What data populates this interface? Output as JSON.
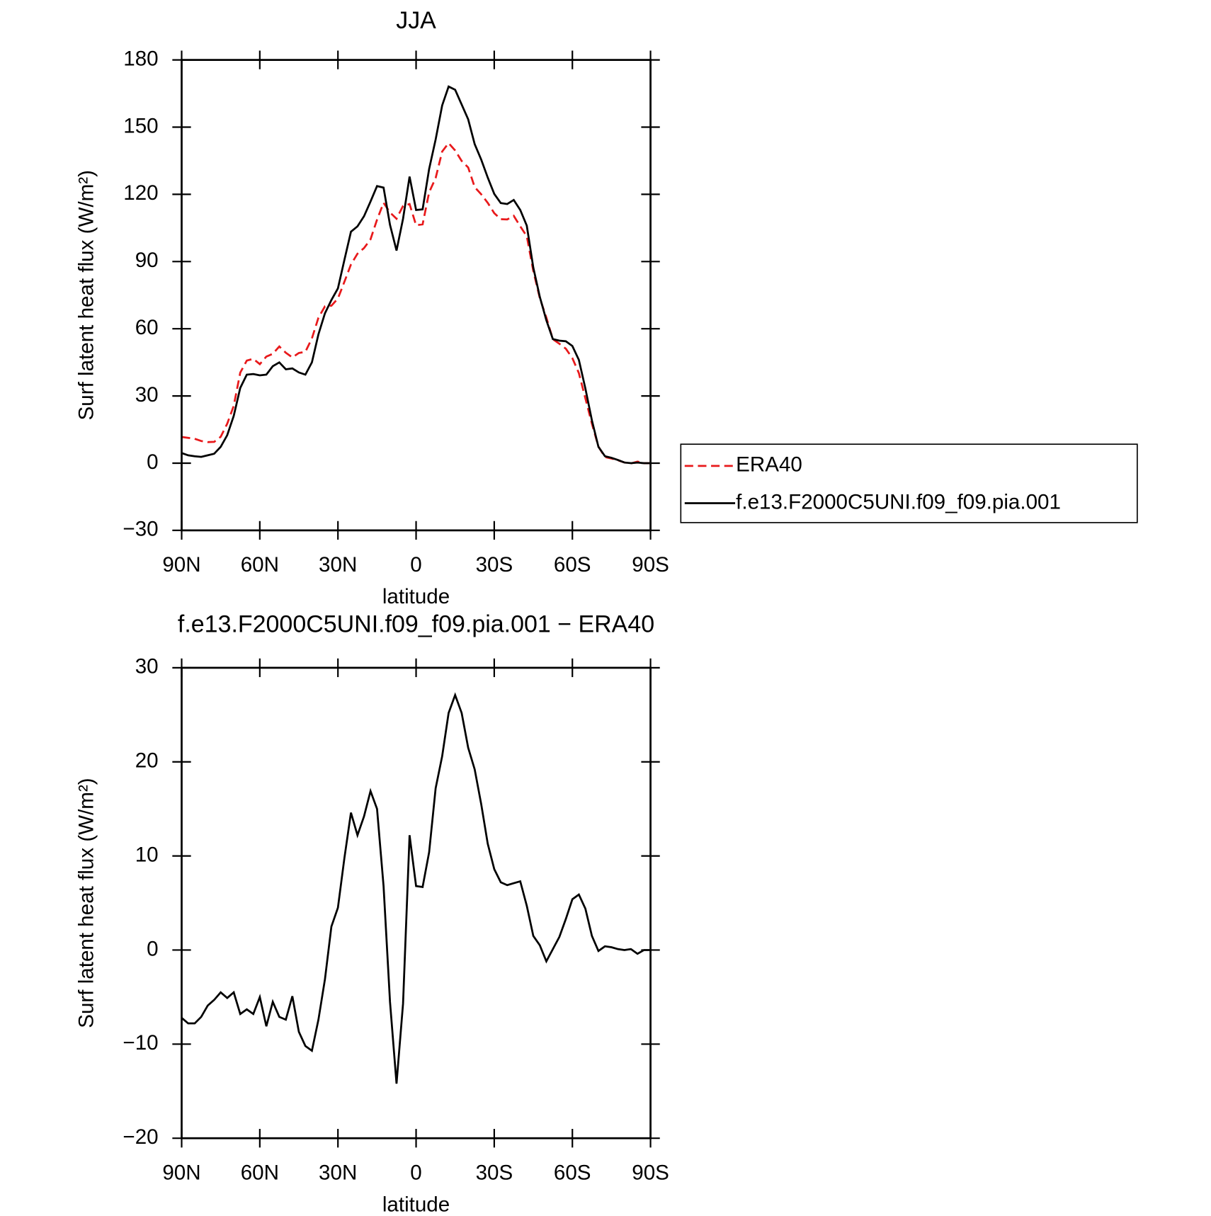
{
  "chart_data": [
    {
      "type": "line",
      "title": "JJA",
      "x_label": "latitude",
      "y_label": "Surf latent heat flux (W/m²)",
      "x": [
        90,
        87.5,
        85,
        82.5,
        80,
        77.5,
        75,
        72.5,
        70,
        67.5,
        65,
        62.5,
        60,
        57.5,
        55,
        52.5,
        50,
        47.5,
        45,
        42.5,
        40,
        37.5,
        35,
        32.5,
        30,
        27.5,
        25,
        22.5,
        20,
        17.5,
        15,
        12.5,
        10,
        7.5,
        5,
        2.5,
        0,
        -2.5,
        -5,
        -7.5,
        -10,
        -12.5,
        -15,
        -17.5,
        -20,
        -22.5,
        -25,
        -27.5,
        -30,
        -32.5,
        -35,
        -37.5,
        -40,
        -42.5,
        -45,
        -47.5,
        -50,
        -52.5,
        -55,
        -57.5,
        -60,
        -62.5,
        -65,
        -67.5,
        -70,
        -72.5,
        -75,
        -77.5,
        -80,
        -82.5,
        -85,
        -87.5,
        -90
      ],
      "xlim": [
        90,
        -90
      ],
      "xticks": [
        {
          "value": 90,
          "label": "90N"
        },
        {
          "value": 60,
          "label": "60N"
        },
        {
          "value": 30,
          "label": "30N"
        },
        0,
        {
          "value": -30,
          "label": "30S"
        },
        {
          "value": -60,
          "label": "60S"
        },
        {
          "value": -90,
          "label": "90S"
        }
      ],
      "ylim": [
        -30,
        180
      ],
      "yticks": [
        {
          "value": -30,
          "label": "−30"
        },
        0,
        30,
        60,
        90,
        120,
        150,
        180
      ],
      "legend": "right",
      "series": [
        {
          "name": "ERA40",
          "color": "#e8191b",
          "dashed": true,
          "values": [
            11.7,
            11.3,
            10.9,
            9.9,
            9.4,
            9.5,
            11.8,
            17.6,
            25.6,
            40.4,
            45.8,
            46.6,
            44.2,
            47.6,
            48.8,
            52.1,
            49.3,
            47.2,
            49.2,
            49.7,
            55.7,
            64.9,
            70.0,
            70.3,
            73.5,
            81.0,
            88.7,
            93.5,
            96.0,
            99.9,
            108.7,
            116.2,
            111.9,
            109.1,
            114.8,
            115.7,
            106.2,
            106.6,
            120.9,
            127.3,
            139.1,
            142.9,
            139.6,
            134.9,
            132.0,
            123.2,
            120.0,
            116.2,
            111.6,
            108.9,
            108.8,
            110.4,
            105.7,
            101.3,
            85.8,
            73.7,
            65.0,
            55.3,
            53.3,
            51.1,
            46.9,
            40.2,
            28.9,
            17.6,
            7.4,
            2.7,
            2.1,
            1.3,
            0.3,
            -0.1,
            0.7,
            0,
            0
          ]
        },
        {
          "name": "f.e13.F2000C5UNI.f09_f09.pia.001",
          "color": "#000000",
          "dashed": false,
          "values": [
            4.5,
            3.5,
            3.1,
            2.8,
            3.5,
            4.2,
            7.3,
            12.5,
            21.1,
            33.6,
            39.5,
            39.8,
            39.2,
            39.5,
            43.3,
            45.0,
            41.9,
            42.3,
            40.5,
            39.5,
            45.0,
            57.5,
            66.9,
            72.8,
            78.0,
            90.8,
            103.3,
            105.7,
            110.2,
            116.8,
            123.7,
            123.0,
            106.4,
            94.9,
            109.1,
            127.9,
            113.0,
            113.3,
            131.3,
            144.5,
            159.7,
            168.1,
            166.7,
            160.1,
            153.5,
            142.4,
            135.5,
            127.5,
            120.2,
            116.1,
            115.7,
            117.5,
            113.0,
            106.0,
            87.3,
            74.2,
            63.8,
            55.4,
            54.7,
            54.4,
            52.3,
            46.1,
            33.3,
            19.1,
            7.3,
            3.1,
            2.4,
            1.4,
            0.3,
            0,
            0.3,
            0,
            0
          ]
        }
      ]
    },
    {
      "type": "line",
      "title": "f.e13.F2000C5UNI.f09_f09.pia.001 − ERA40",
      "x_label": "latitude",
      "y_label": "Surf latent heat flux (W/m²)",
      "x": [
        90,
        87.5,
        85,
        82.5,
        80,
        77.5,
        75,
        72.5,
        70,
        67.5,
        65,
        62.5,
        60,
        57.5,
        55,
        52.5,
        50,
        47.5,
        45,
        42.5,
        40,
        37.5,
        35,
        32.5,
        30,
        27.5,
        25,
        22.5,
        20,
        17.5,
        15,
        12.5,
        10,
        7.5,
        5,
        2.5,
        0,
        -2.5,
        -5,
        -7.5,
        -10,
        -12.5,
        -15,
        -17.5,
        -20,
        -22.5,
        -25,
        -27.5,
        -30,
        -32.5,
        -35,
        -37.5,
        -40,
        -42.5,
        -45,
        -47.5,
        -50,
        -52.5,
        -55,
        -57.5,
        -60,
        -62.5,
        -65,
        -67.5,
        -70,
        -72.5,
        -75,
        -77.5,
        -80,
        -82.5,
        -85,
        -87.5,
        -90
      ],
      "xlim": [
        90,
        -90
      ],
      "xticks": [
        {
          "value": 90,
          "label": "90N"
        },
        {
          "value": 60,
          "label": "60N"
        },
        {
          "value": 30,
          "label": "30N"
        },
        0,
        {
          "value": -30,
          "label": "30S"
        },
        {
          "value": -60,
          "label": "60S"
        },
        {
          "value": -90,
          "label": "90S"
        }
      ],
      "ylim": [
        -20,
        30
      ],
      "yticks": [
        {
          "value": -20,
          "label": "−20"
        },
        {
          "value": -10,
          "label": "−10"
        },
        0,
        10,
        20,
        30
      ],
      "series": [
        {
          "color": "#000000",
          "dashed": false,
          "values": [
            -7.2,
            -7.8,
            -7.8,
            -7.1,
            -5.9,
            -5.3,
            -4.5,
            -5.1,
            -4.5,
            -6.8,
            -6.3,
            -6.8,
            -5.0,
            -8.1,
            -5.5,
            -7.1,
            -7.4,
            -4.9,
            -8.7,
            -10.2,
            -10.7,
            -7.4,
            -3.1,
            2.5,
            4.5,
            9.8,
            14.6,
            12.2,
            14.2,
            16.9,
            15.0,
            6.8,
            -5.5,
            -14.2,
            -5.7,
            12.2,
            6.8,
            6.7,
            10.4,
            17.2,
            20.6,
            25.2,
            27.1,
            25.2,
            21.5,
            19.2,
            15.5,
            11.3,
            8.6,
            7.2,
            6.9,
            7.1,
            7.3,
            4.7,
            1.5,
            0.5,
            -1.2,
            0.1,
            1.4,
            3.3,
            5.4,
            5.9,
            4.4,
            1.5,
            -0.1,
            0.4,
            0.3,
            0.1,
            0.0,
            0.1,
            -0.4,
            0,
            0
          ]
        }
      ]
    }
  ]
}
